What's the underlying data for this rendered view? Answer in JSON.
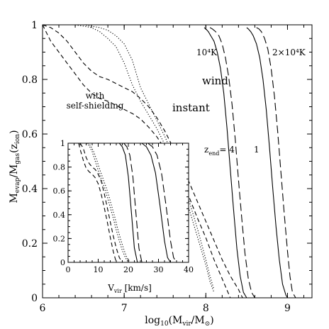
{
  "chart_data": {
    "type": "line",
    "xlabel": "log10(Mvir/M⊙)",
    "ylabel": "Mevap/Mgas(zion)",
    "xlim": [
      6,
      9.3
    ],
    "ylim": [
      0,
      1
    ],
    "xticks": [
      "6",
      "7",
      "8",
      "9"
    ],
    "yticks": [
      "0",
      "0.2",
      "0.4",
      "0.6",
      "0.8",
      "1"
    ],
    "grid": false,
    "annotations": {
      "self_shielding_1": "with",
      "self_shielding_2": "self-shielding",
      "instant": "instant",
      "wind": "wind",
      "temp_1e4": "10⁴K",
      "temp_2e4": "2×10⁴K",
      "zend_prefix": "z",
      "zend_sub": "end",
      "zend_4": "= 4",
      "zend_1": "1"
    },
    "series": [
      {
        "style": "dashed",
        "x": [
          6.0,
          6.1,
          6.2,
          6.3,
          6.4,
          6.5,
          6.6,
          6.7,
          6.8,
          6.9,
          7.0,
          7.1,
          7.2,
          7.3,
          7.4,
          7.5,
          7.6,
          7.7,
          7.8,
          7.9,
          8.0,
          8.1,
          8.2,
          8.3,
          8.4,
          8.45
        ],
        "y": [
          1.0,
          0.99,
          0.97,
          0.94,
          0.9,
          0.86,
          0.83,
          0.81,
          0.8,
          0.785,
          0.77,
          0.755,
          0.73,
          0.7,
          0.66,
          0.61,
          0.55,
          0.49,
          0.42,
          0.35,
          0.28,
          0.21,
          0.14,
          0.08,
          0.03,
          0.0
        ]
      },
      {
        "style": "dashed",
        "x": [
          6.0,
          6.05,
          6.1,
          6.2,
          6.3,
          6.4,
          6.5,
          6.6,
          6.7,
          6.8,
          6.9,
          7.0,
          7.1,
          7.2,
          7.3,
          7.4,
          7.5,
          7.6,
          7.7,
          7.8,
          7.9,
          8.0,
          8.1,
          8.2,
          8.3
        ],
        "y": [
          1.0,
          0.97,
          0.94,
          0.9,
          0.86,
          0.82,
          0.78,
          0.75,
          0.73,
          0.72,
          0.705,
          0.69,
          0.675,
          0.655,
          0.625,
          0.59,
          0.545,
          0.49,
          0.43,
          0.365,
          0.29,
          0.22,
          0.14,
          0.07,
          0.0
        ]
      },
      {
        "style": "dotted",
        "x": [
          6.4,
          6.5,
          6.6,
          6.7,
          6.8,
          6.9,
          7.0,
          7.05,
          7.1,
          7.2,
          7.3,
          7.4,
          7.5,
          7.6,
          7.7,
          7.8,
          7.9,
          8.0,
          8.05,
          8.1
        ],
        "y": [
          1.0,
          0.995,
          0.99,
          0.975,
          0.95,
          0.92,
          0.86,
          0.82,
          0.78,
          0.72,
          0.67,
          0.62,
          0.56,
          0.49,
          0.41,
          0.32,
          0.22,
          0.12,
          0.06,
          0.02
        ]
      },
      {
        "style": "dotted",
        "x": [
          6.5,
          6.6,
          6.7,
          6.8,
          6.9,
          7.0,
          7.1,
          7.15,
          7.2,
          7.3,
          7.4,
          7.5,
          7.6,
          7.7,
          7.8,
          7.9,
          8.0,
          8.05,
          8.1
        ],
        "y": [
          1.0,
          0.995,
          0.99,
          0.98,
          0.96,
          0.93,
          0.87,
          0.82,
          0.77,
          0.71,
          0.65,
          0.59,
          0.52,
          0.44,
          0.35,
          0.25,
          0.14,
          0.08,
          0.03
        ]
      },
      {
        "style": "solid",
        "x": [
          7.98,
          8.0,
          8.03,
          8.06,
          8.1,
          8.14,
          8.18,
          8.22,
          8.26,
          8.3,
          8.34,
          8.38,
          8.42,
          8.46,
          8.5
        ],
        "y": [
          0.99,
          0.985,
          0.975,
          0.96,
          0.94,
          0.9,
          0.84,
          0.75,
          0.62,
          0.47,
          0.32,
          0.18,
          0.08,
          0.02,
          0.0
        ]
      },
      {
        "style": "longdash",
        "x": [
          8.05,
          8.08,
          8.12,
          8.16,
          8.2,
          8.24,
          8.28,
          8.32,
          8.36,
          8.4,
          8.44,
          8.48,
          8.52,
          8.56,
          8.6
        ],
        "y": [
          0.99,
          0.985,
          0.975,
          0.96,
          0.93,
          0.88,
          0.81,
          0.71,
          0.58,
          0.43,
          0.29,
          0.16,
          0.07,
          0.02,
          0.0
        ]
      },
      {
        "style": "solid",
        "x": [
          8.5,
          8.52,
          8.55,
          8.58,
          8.62,
          8.66,
          8.7,
          8.74,
          8.78,
          8.82,
          8.86,
          8.9,
          8.94,
          8.98,
          9.0
        ],
        "y": [
          0.99,
          0.985,
          0.975,
          0.96,
          0.93,
          0.88,
          0.8,
          0.69,
          0.55,
          0.4,
          0.26,
          0.14,
          0.05,
          0.01,
          0.0
        ]
      },
      {
        "style": "longdash",
        "x": [
          8.62,
          8.65,
          8.68,
          8.72,
          8.76,
          8.8,
          8.84,
          8.88,
          8.92,
          8.96,
          9.0,
          9.03,
          9.06,
          9.1
        ],
        "y": [
          0.99,
          0.985,
          0.975,
          0.95,
          0.91,
          0.84,
          0.74,
          0.61,
          0.46,
          0.31,
          0.17,
          0.08,
          0.02,
          0.0
        ]
      }
    ],
    "inset": {
      "xlabel": "Vvir [km/s]",
      "xlim": [
        0,
        40
      ],
      "ylim": [
        0,
        1
      ],
      "xticks": [
        "0",
        "10",
        "20",
        "30",
        "40"
      ],
      "yticks": [
        "0",
        "0.2",
        "0.4",
        "0.6",
        "0.8",
        "1"
      ],
      "series": [
        {
          "style": "dashed",
          "x": [
            4,
            5,
            6,
            7,
            8,
            9,
            10,
            11,
            12,
            13,
            14,
            15,
            16,
            17,
            18
          ],
          "y": [
            1.0,
            0.96,
            0.88,
            0.83,
            0.8,
            0.78,
            0.74,
            0.68,
            0.58,
            0.46,
            0.34,
            0.22,
            0.12,
            0.04,
            0.0
          ]
        },
        {
          "style": "dashed",
          "x": [
            3.5,
            4,
            5,
            6,
            7,
            8,
            9,
            10,
            11,
            12,
            13,
            14,
            15,
            16
          ],
          "y": [
            1.0,
            0.95,
            0.86,
            0.79,
            0.76,
            0.74,
            0.71,
            0.66,
            0.57,
            0.46,
            0.34,
            0.21,
            0.09,
            0.0
          ]
        },
        {
          "style": "dotted",
          "x": [
            6,
            7,
            8,
            9,
            10,
            11,
            12,
            13,
            14,
            15,
            16,
            17,
            18,
            19,
            20
          ],
          "y": [
            1.0,
            0.98,
            0.93,
            0.85,
            0.77,
            0.7,
            0.63,
            0.55,
            0.46,
            0.37,
            0.27,
            0.18,
            0.1,
            0.04,
            0.0
          ]
        },
        {
          "style": "dotted",
          "x": [
            6.5,
            7.5,
            8.5,
            9.5,
            10.5,
            11.5,
            12.5,
            13.5,
            14.5,
            15.5,
            16.5,
            17.5,
            18.5,
            19.5,
            20.5
          ],
          "y": [
            1.0,
            0.98,
            0.93,
            0.86,
            0.78,
            0.71,
            0.64,
            0.56,
            0.47,
            0.38,
            0.28,
            0.19,
            0.11,
            0.04,
            0.0
          ]
        },
        {
          "style": "solid",
          "x": [
            17,
            18,
            19,
            20,
            21,
            22,
            23
          ],
          "y": [
            1.0,
            0.97,
            0.9,
            0.72,
            0.42,
            0.12,
            0.0
          ]
        },
        {
          "style": "longdash",
          "x": [
            18.5,
            19.5,
            20.5,
            21.5,
            22.5,
            23.5,
            24.5
          ],
          "y": [
            1.0,
            0.97,
            0.9,
            0.72,
            0.42,
            0.12,
            0.0
          ]
        },
        {
          "style": "solid",
          "x": [
            24.5,
            26,
            27.5,
            29,
            30.5,
            32,
            33,
            34
          ],
          "y": [
            1.0,
            0.97,
            0.9,
            0.75,
            0.48,
            0.18,
            0.04,
            0.0
          ]
        },
        {
          "style": "longdash",
          "x": [
            26.5,
            28,
            29.5,
            31,
            32.5,
            34,
            35,
            36
          ],
          "y": [
            1.0,
            0.97,
            0.9,
            0.75,
            0.48,
            0.18,
            0.04,
            0.0
          ]
        }
      ]
    }
  }
}
